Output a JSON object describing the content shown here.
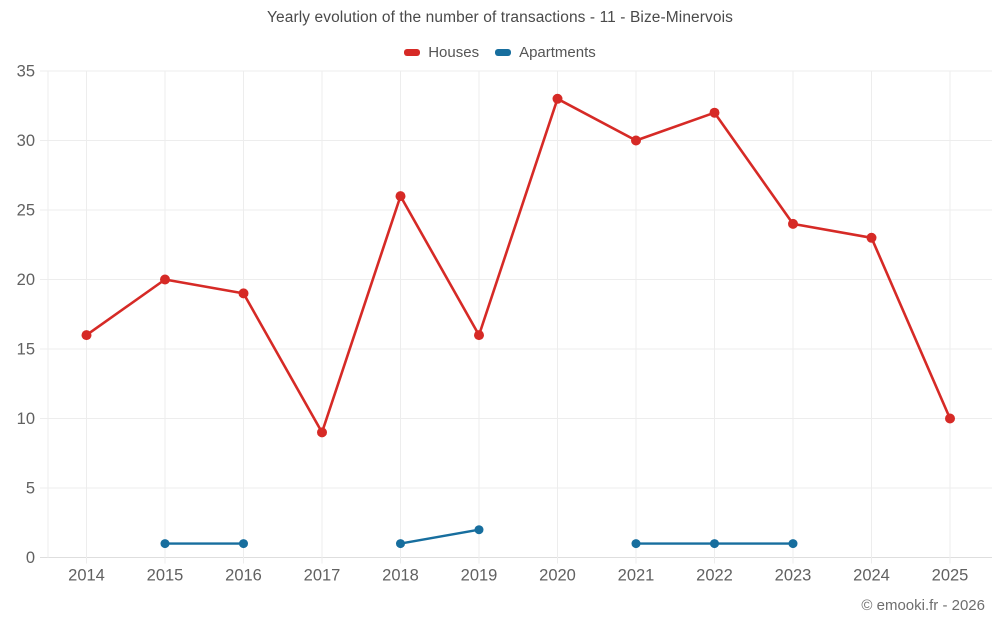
{
  "chart_data": {
    "type": "line",
    "title": "Yearly evolution of the number of transactions - 11 - Bize-Minervois",
    "categories": [
      "2014",
      "2015",
      "2016",
      "2017",
      "2018",
      "2019",
      "2020",
      "2021",
      "2022",
      "2023",
      "2024",
      "2025"
    ],
    "series": [
      {
        "name": "Houses",
        "color": "#d62a26",
        "values": [
          16,
          20,
          19,
          9,
          26,
          16,
          33,
          30,
          32,
          24,
          23,
          10
        ]
      },
      {
        "name": "Apartments",
        "color": "#176e9e",
        "values": [
          null,
          1,
          1,
          null,
          1,
          2,
          null,
          1,
          1,
          1,
          null,
          null
        ]
      }
    ],
    "xlabel": "",
    "ylabel": "",
    "ylim": [
      0,
      35
    ],
    "ytick_step": 5,
    "grid": true,
    "legend_position": "top"
  },
  "footer": {
    "credit": "© emooki.fr - 2026"
  },
  "colors": {
    "background": "#ffffff",
    "grid": "#ededed",
    "axis": "#dedede",
    "tick_text": "#616161",
    "title_text": "#4a4a4a",
    "legend_text": "#555555",
    "footer_text": "#6e6e6e"
  }
}
